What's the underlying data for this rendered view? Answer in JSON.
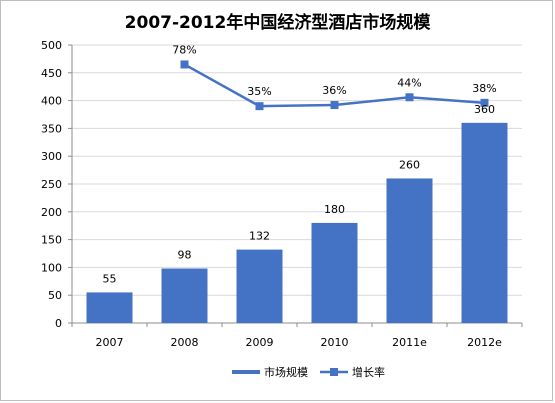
{
  "chart_data": {
    "type": "bar",
    "title": "2007-2012年中国经济型酒店市场规模",
    "categories": [
      "2007",
      "2008",
      "2009",
      "2010",
      "2011e",
      "2012e"
    ],
    "series": [
      {
        "name": "市场规模",
        "type": "bar",
        "values": [
          55,
          98,
          132,
          180,
          260,
          360
        ],
        "data_labels": [
          "55",
          "98",
          "132",
          "180",
          "260",
          "360"
        ],
        "color": "#4472C4"
      },
      {
        "name": "增长率",
        "type": "line",
        "values": [
          null,
          0.78,
          0.35,
          0.36,
          0.44,
          0.38
        ],
        "plot_values": [
          null,
          465,
          390,
          392,
          406,
          396
        ],
        "data_labels": [
          "",
          "78%",
          "35%",
          "36%",
          "44%",
          "38%"
        ],
        "color": "#4472C4"
      }
    ],
    "y_ticks": [
      "0",
      "50",
      "100",
      "150",
      "200",
      "250",
      "300",
      "350",
      "400",
      "450",
      "500"
    ],
    "ylim": [
      0,
      500
    ],
    "xlabel": "",
    "ylabel": "",
    "grid": true,
    "legend_position": "bottom"
  }
}
